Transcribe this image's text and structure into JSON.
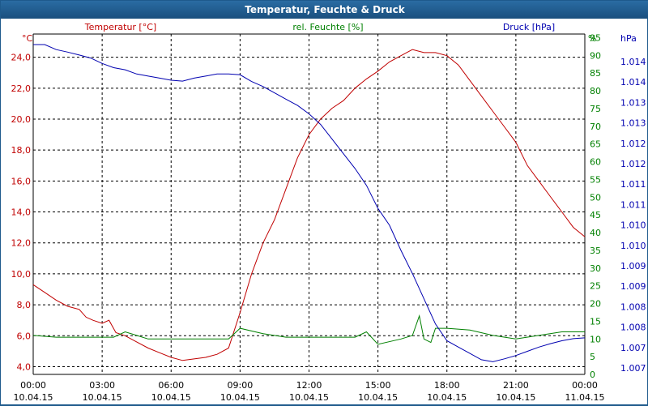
{
  "window": {
    "title": "Temperatur, Feuchte & Druck"
  },
  "colors": {
    "temperature": "#c00000",
    "humidity": "#008000",
    "pressure": "#0000b0",
    "title_bg": "#1e5a8c"
  },
  "chart_data": {
    "type": "line",
    "title": "Temperatur, Feuchte & Druck",
    "axes": {
      "temperature": {
        "unit": "°C",
        "label": "Temperatur [°C]",
        "range": [
          3.5,
          25.5
        ],
        "ticks": [
          "4,0",
          "6,0",
          "8,0",
          "10,0",
          "12,0",
          "14,0",
          "16,0",
          "18,0",
          "20,0",
          "22,0",
          "24,0"
        ]
      },
      "humidity": {
        "unit": "%",
        "label": "rel. Feuchte [%]",
        "range": [
          0,
          96
        ],
        "ticks": [
          "0",
          "5",
          "10",
          "15",
          "20",
          "25",
          "30",
          "35",
          "40",
          "45",
          "50",
          "55",
          "60",
          "65",
          "70",
          "75",
          "80",
          "85",
          "90",
          "95"
        ]
      },
      "pressure": {
        "unit": "hPa",
        "label": "Druck [hPa]",
        "range": [
          1006.75,
          1014.85
        ],
        "ticks": [
          "1.007",
          "1.007",
          "1.008",
          "1.008",
          "1.009",
          "1.009",
          "1.010",
          "1.010",
          "1.011",
          "1.011",
          "1.012",
          "1.012",
          "1.013",
          "1.013",
          "1.014",
          "1.014"
        ]
      }
    },
    "x_ticks": [
      {
        "time": "00:00",
        "date": "10.04.15"
      },
      {
        "time": "03:00",
        "date": "10.04.15"
      },
      {
        "time": "06:00",
        "date": "10.04.15"
      },
      {
        "time": "09:00",
        "date": "10.04.15"
      },
      {
        "time": "12:00",
        "date": "10.04.15"
      },
      {
        "time": "15:00",
        "date": "10.04.15"
      },
      {
        "time": "18:00",
        "date": "10.04.15"
      },
      {
        "time": "21:00",
        "date": "10.04.15"
      },
      {
        "time": "00:00",
        "date": "11.04.15"
      }
    ],
    "x_range_hours": [
      0,
      24
    ],
    "grid": true,
    "series": [
      {
        "name": "Temperatur",
        "axis": "temperature",
        "x": [
          0,
          0.5,
          1,
          1.5,
          2,
          2.3,
          2.6,
          3,
          3.3,
          3.6,
          4,
          4.5,
          5,
          5.5,
          6,
          6.5,
          7,
          7.5,
          8,
          8.5,
          9,
          9.5,
          10,
          10.5,
          11,
          11.5,
          12,
          12.5,
          13,
          13.5,
          14,
          14.5,
          15,
          15.5,
          16,
          16.5,
          17,
          17.5,
          18,
          18.5,
          19,
          19.5,
          20,
          20.5,
          21,
          21.5,
          22,
          22.5,
          23,
          23.5,
          24
        ],
        "values": [
          9.3,
          8.8,
          8.3,
          7.9,
          7.7,
          7.2,
          7.0,
          6.8,
          7.0,
          6.2,
          6.0,
          5.6,
          5.2,
          4.9,
          4.6,
          4.4,
          4.5,
          4.6,
          4.8,
          5.2,
          7.5,
          10.0,
          12.0,
          13.5,
          15.5,
          17.5,
          19.0,
          20.0,
          20.7,
          21.2,
          22.0,
          22.6,
          23.1,
          23.7,
          24.1,
          24.5,
          24.3,
          24.3,
          24.1,
          23.5,
          22.5,
          21.5,
          20.5,
          19.5,
          18.5,
          17.0,
          16.0,
          15.0,
          14.0,
          13.0,
          12.4
        ]
      },
      {
        "name": "rel. Feuchte",
        "axis": "humidity",
        "x": [
          0,
          1,
          2,
          3,
          3.5,
          4,
          4.5,
          5,
          6,
          7,
          8,
          8.5,
          9,
          10,
          11,
          12,
          13,
          14,
          14.5,
          15,
          16,
          16.5,
          16.8,
          17,
          17.3,
          17.5,
          18,
          19,
          20,
          21,
          22,
          23,
          24
        ],
        "values": [
          11,
          10.5,
          10.5,
          10.5,
          10.5,
          12,
          11,
          10,
          10,
          10,
          10,
          10,
          13,
          11.5,
          10.5,
          10.5,
          10.5,
          10.5,
          12,
          8.5,
          10,
          11,
          16.5,
          10,
          9,
          13,
          13,
          12.5,
          11,
          10,
          11,
          12,
          12
        ]
      },
      {
        "name": "Druck",
        "axis": "pressure",
        "x": [
          0,
          0.5,
          1,
          1.5,
          2,
          2.5,
          3,
          3.5,
          4,
          4.5,
          5,
          5.5,
          6,
          6.5,
          7,
          7.5,
          8,
          8.5,
          9,
          9.5,
          10,
          10.5,
          11,
          11.5,
          12,
          12.5,
          13,
          13.5,
          14,
          14.5,
          15,
          15.5,
          16,
          16.5,
          17,
          17.5,
          18,
          18.5,
          19,
          19.5,
          20,
          20.5,
          21,
          21.5,
          22,
          22.5,
          23,
          23.5,
          24
        ],
        "values": [
          1014.6,
          1014.6,
          1014.48,
          1014.42,
          1014.35,
          1014.28,
          1014.15,
          1014.05,
          1014.0,
          1013.9,
          1013.85,
          1013.8,
          1013.75,
          1013.73,
          1013.8,
          1013.85,
          1013.9,
          1013.9,
          1013.88,
          1013.72,
          1013.6,
          1013.45,
          1013.3,
          1013.15,
          1012.95,
          1012.7,
          1012.35,
          1012.0,
          1011.65,
          1011.25,
          1010.7,
          1010.3,
          1009.7,
          1009.15,
          1008.55,
          1007.95,
          1007.55,
          1007.4,
          1007.25,
          1007.1,
          1007.05,
          1007.12,
          1007.2,
          1007.3,
          1007.4,
          1007.48,
          1007.55,
          1007.6,
          1007.62
        ]
      }
    ]
  }
}
